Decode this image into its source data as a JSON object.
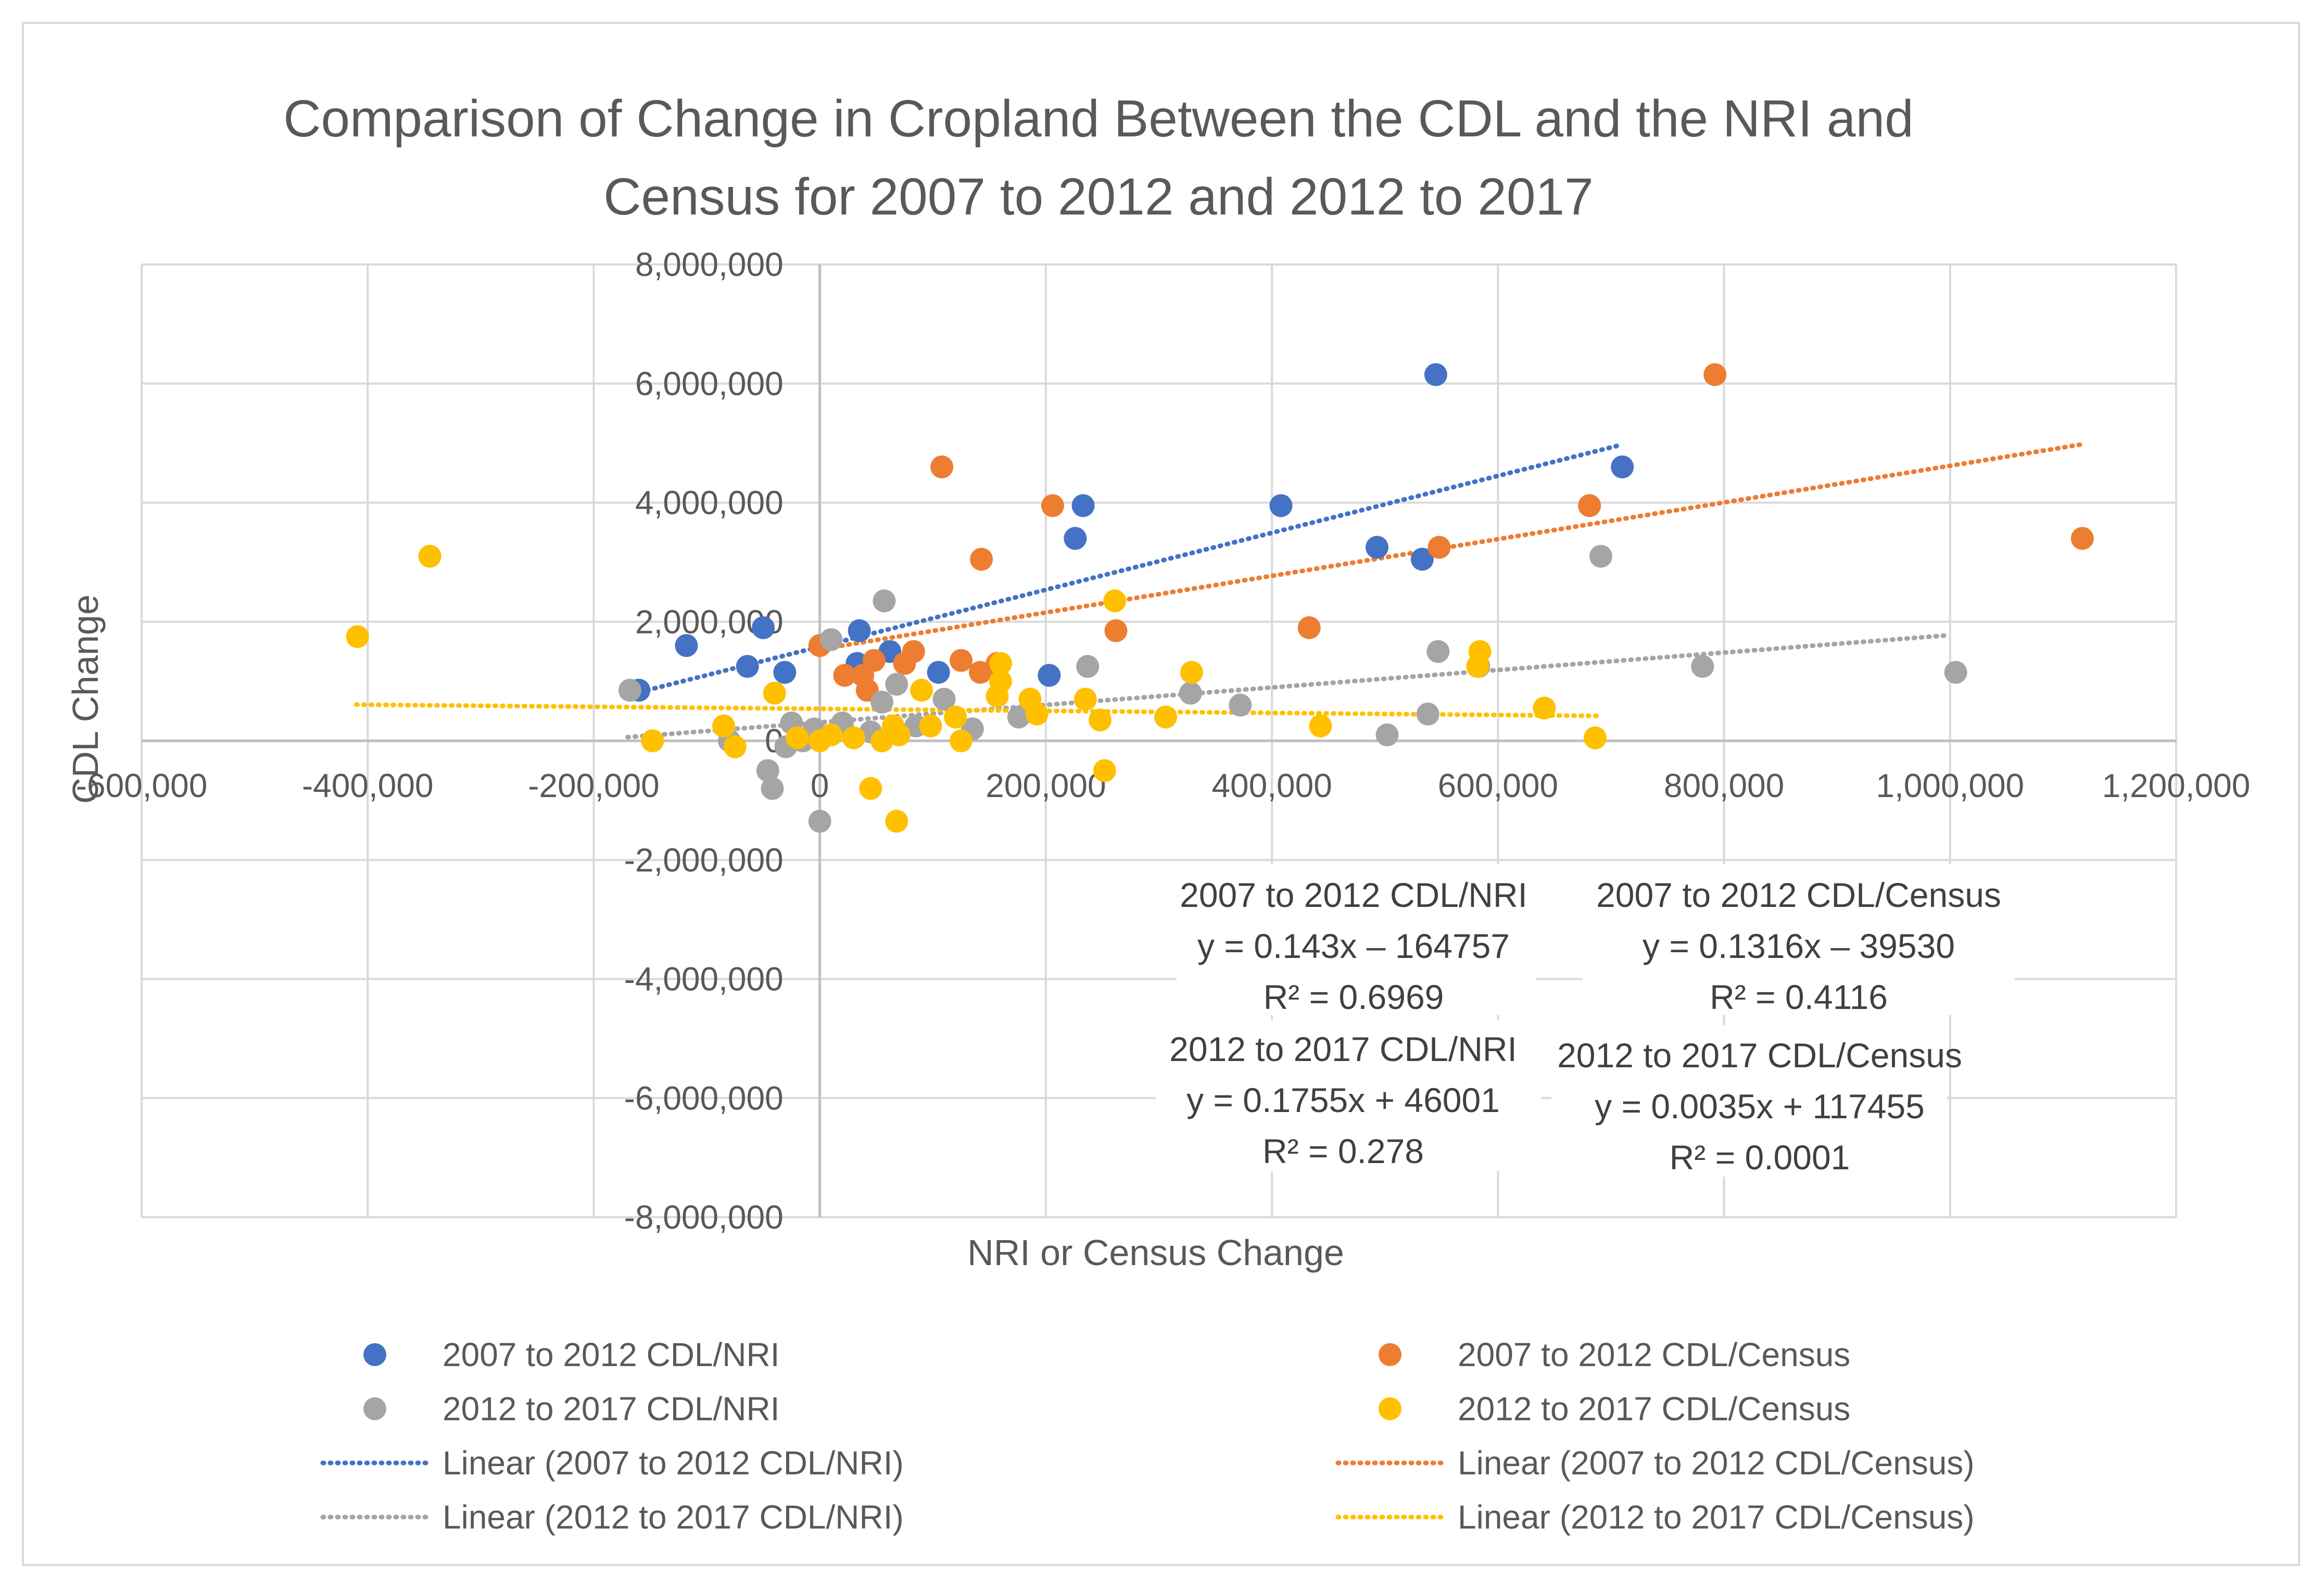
{
  "chart_data": {
    "type": "scatter",
    "title_lines": [
      "Comparison of Change in Cropland Between the CDL and the NRI and",
      "Census for 2007 to 2012 and 2012 to 2017"
    ],
    "xlabel": "NRI or Census Change",
    "ylabel": "CDL Change",
    "xlim": [
      -600000,
      1200000
    ],
    "ylim": [
      -8000000,
      8000000
    ],
    "x_ticks": [
      -600000,
      -400000,
      -200000,
      0,
      200000,
      400000,
      600000,
      800000,
      1000000,
      1200000
    ],
    "x_tick_labels": [
      "-600,000",
      "-400,000",
      "-200,000",
      "0",
      "200,000",
      "400,000",
      "600,000",
      "800,000",
      "1,000,000",
      "1,200,000"
    ],
    "y_ticks": [
      -8000000,
      -6000000,
      -4000000,
      -2000000,
      0,
      2000000,
      4000000,
      6000000,
      8000000
    ],
    "y_tick_labels": [
      "-8,000,000",
      "-6,000,000",
      "-4,000,000",
      "-2,000,000",
      "0",
      "2,000,000",
      "4,000,000",
      "6,000,000",
      "8,000,000"
    ],
    "grid": true,
    "legend_position": "bottom",
    "series": [
      {
        "name": "2007 to 2012 CDL/NRI",
        "color": "#4472C4",
        "points": [
          [
            545000,
            6150000
          ],
          [
            710000,
            4600000
          ],
          [
            233000,
            3950000
          ],
          [
            408000,
            3950000
          ],
          [
            226000,
            3400000
          ],
          [
            493000,
            3250000
          ],
          [
            533000,
            3050000
          ],
          [
            -118000,
            1600000
          ],
          [
            -50000,
            1900000
          ],
          [
            -64000,
            1250000
          ],
          [
            -31000,
            1150000
          ],
          [
            35000,
            1850000
          ],
          [
            33000,
            1300000
          ],
          [
            62000,
            1500000
          ],
          [
            105000,
            1150000
          ],
          [
            203000,
            1100000
          ],
          [
            -160000,
            850000
          ]
        ],
        "trend": {
          "name": "Linear (2007 to 2012 CDL/NRI)",
          "x_range": [
            -165000,
            705000
          ],
          "equation": "y = 0.143x – 164757",
          "r2": "R² = 0.6969"
        }
      },
      {
        "name": "2007 to 2012 CDL/Census",
        "color": "#ED7D31",
        "points": [
          [
            792000,
            6150000
          ],
          [
            1117000,
            3400000
          ],
          [
            108000,
            4600000
          ],
          [
            206000,
            3950000
          ],
          [
            681000,
            3950000
          ],
          [
            143000,
            3050000
          ],
          [
            548000,
            3250000
          ],
          [
            433000,
            1900000
          ],
          [
            262000,
            1850000
          ],
          [
            0,
            1600000
          ],
          [
            83000,
            1500000
          ],
          [
            48000,
            1350000
          ],
          [
            125000,
            1350000
          ],
          [
            157000,
            1300000
          ],
          [
            142000,
            1150000
          ],
          [
            22000,
            1100000
          ],
          [
            38000,
            1100000
          ],
          [
            42000,
            850000
          ],
          [
            75000,
            1300000
          ]
        ],
        "trend": {
          "name": "Linear (2007 to 2012 CDL/Census)",
          "x_range": [
            0,
            1115000
          ],
          "equation": "y = 0.1316x – 39530",
          "r2": "R² = 0.4116"
        }
      },
      {
        "name": "2012 to 2017 CDL/NRI",
        "color": "#A5A5A5",
        "points": [
          [
            57000,
            2350000
          ],
          [
            691000,
            3100000
          ],
          [
            1005000,
            1150000
          ],
          [
            781000,
            1250000
          ],
          [
            547000,
            1500000
          ],
          [
            583000,
            1250000
          ],
          [
            237000,
            1250000
          ],
          [
            328000,
            800000
          ],
          [
            372000,
            600000
          ],
          [
            538000,
            450000
          ],
          [
            502000,
            100000
          ],
          [
            -168000,
            850000
          ],
          [
            10000,
            1700000
          ],
          [
            55000,
            650000
          ],
          [
            110000,
            700000
          ],
          [
            68000,
            950000
          ],
          [
            176000,
            400000
          ],
          [
            135000,
            200000
          ],
          [
            -80000,
            0
          ],
          [
            -46000,
            -500000
          ],
          [
            -42000,
            -800000
          ],
          [
            0,
            -1350000
          ],
          [
            -25000,
            300000
          ],
          [
            -15000,
            0
          ],
          [
            -5000,
            200000
          ],
          [
            20000,
            300000
          ],
          [
            45000,
            150000
          ],
          [
            -30000,
            -100000
          ],
          [
            85000,
            250000
          ]
        ],
        "trend": {
          "name": "Linear (2012 to 2017 CDL/NRI)",
          "x_range": [
            -170000,
            1000000
          ],
          "equation": "y = 0.1755x + 46001",
          "r2": "R² = 0.278"
        }
      },
      {
        "name": "2012 to 2017 CDL/Census",
        "color": "#FFC000",
        "points": [
          [
            -409000,
            1750000
          ],
          [
            -345000,
            3100000
          ],
          [
            261000,
            2350000
          ],
          [
            584000,
            1500000
          ],
          [
            582000,
            1250000
          ],
          [
            329000,
            1150000
          ],
          [
            160000,
            1300000
          ],
          [
            157000,
            750000
          ],
          [
            186000,
            700000
          ],
          [
            235000,
            700000
          ],
          [
            248000,
            350000
          ],
          [
            306000,
            400000
          ],
          [
            443000,
            250000
          ],
          [
            641000,
            550000
          ],
          [
            686000,
            50000
          ],
          [
            -148000,
            0
          ],
          [
            -85000,
            250000
          ],
          [
            -75000,
            -100000
          ],
          [
            -40000,
            800000
          ],
          [
            90000,
            850000
          ],
          [
            120000,
            400000
          ],
          [
            98000,
            250000
          ],
          [
            192000,
            450000
          ],
          [
            252000,
            -500000
          ],
          [
            45000,
            -800000
          ],
          [
            68000,
            -1350000
          ],
          [
            125000,
            0
          ],
          [
            10000,
            100000
          ],
          [
            30000,
            50000
          ],
          [
            55000,
            0
          ],
          [
            0,
            0
          ],
          [
            -20000,
            50000
          ],
          [
            65000,
            250000
          ],
          [
            70000,
            100000
          ],
          [
            160000,
            1000000
          ]
        ],
        "trend": {
          "name": "Linear (2012 to 2017 CDL/Census)",
          "x_range": [
            -410000,
            690000
          ],
          "equation": "y = 0.0035x + 117455",
          "r2": "R² = 0.0001"
        }
      }
    ],
    "equation_boxes": [
      {
        "label": "2007 to 2012 CDL/NRI",
        "equation": "y = 0.143x – 164757",
        "r2": "R² = 0.6969"
      },
      {
        "label": "2007 to 2012 CDL/Census",
        "equation": "y = 0.1316x – 39530",
        "r2": "R² = 0.4116"
      },
      {
        "label": "2012 to 2017 CDL/NRI",
        "equation": "y = 0.1755x + 46001",
        "r2": "R² = 0.278"
      },
      {
        "label": "2012 to 2017 CDL/Census",
        "equation": "y = 0.0035x + 117455",
        "r2": "R² = 0.0001"
      }
    ]
  }
}
